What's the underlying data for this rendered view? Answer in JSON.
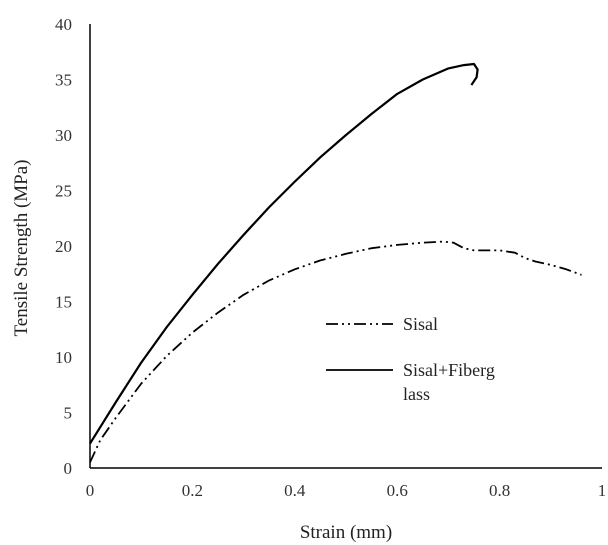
{
  "chart_data": {
    "type": "line",
    "title": "",
    "xlabel": "Strain (mm)",
    "ylabel": "Tensile Strength (MPa)",
    "xlim": [
      0,
      1
    ],
    "ylim": [
      0,
      40
    ],
    "x_ticks": [
      "0",
      "0.2",
      "0.4",
      "0.6",
      "0.8",
      "1"
    ],
    "y_ticks": [
      "0",
      "5",
      "10",
      "15",
      "20",
      "25",
      "30",
      "35",
      "40"
    ],
    "grid": false,
    "legend_position": "right-center",
    "series": [
      {
        "name": "Sisal",
        "line_style": "dash-dot-dot",
        "color": "#000000",
        "x": [
          0.0,
          0.02,
          0.05,
          0.1,
          0.15,
          0.2,
          0.25,
          0.3,
          0.35,
          0.4,
          0.45,
          0.5,
          0.55,
          0.6,
          0.65,
          0.69,
          0.71,
          0.73,
          0.75,
          0.8,
          0.83,
          0.85,
          0.87,
          0.9,
          0.93,
          0.96
        ],
        "y": [
          0.5,
          2.5,
          4.5,
          7.6,
          10.1,
          12.2,
          14.0,
          15.6,
          16.9,
          17.9,
          18.7,
          19.3,
          19.8,
          20.1,
          20.3,
          20.4,
          20.3,
          19.8,
          19.6,
          19.6,
          19.4,
          18.9,
          18.6,
          18.3,
          17.9,
          17.4
        ]
      },
      {
        "name": "Sisal+Fiberg\nlass",
        "line_style": "solid",
        "color": "#000000",
        "x": [
          0.0,
          0.05,
          0.1,
          0.15,
          0.2,
          0.25,
          0.3,
          0.35,
          0.4,
          0.45,
          0.5,
          0.55,
          0.6,
          0.65,
          0.7,
          0.73,
          0.75,
          0.757,
          0.755,
          0.745
        ],
        "y": [
          2.2,
          5.9,
          9.5,
          12.7,
          15.6,
          18.4,
          21.0,
          23.5,
          25.8,
          28.0,
          30.0,
          31.9,
          33.7,
          35.0,
          36.0,
          36.3,
          36.4,
          35.9,
          35.2,
          34.5
        ]
      }
    ]
  }
}
